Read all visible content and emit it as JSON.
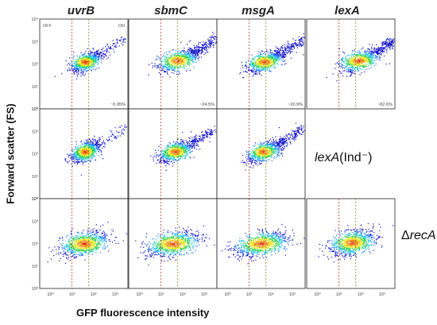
{
  "chart_data": {
    "type": "scatter",
    "title": "",
    "xlabel": "GFP fluorescence intensity",
    "ylabel": "Forward scatter (FS)",
    "x_scale": "log",
    "y_scale": "log",
    "x_ticks": [
      "10⁰",
      "10¹",
      "10²",
      "10³"
    ],
    "y_ticks": [
      "10⁰",
      "10¹",
      "10²",
      "10³",
      "10⁴"
    ],
    "columns": [
      "uvrB",
      "sbmC",
      "msgA",
      "lexA"
    ],
    "rows": [
      {
        "label": "",
        "panels": [
          {
            "gene": "uvrB",
            "percent_on": "~5.95%"
          },
          {
            "gene": "sbmC",
            "percent_on": "~24.5%"
          },
          {
            "gene": "msgA",
            "percent_on": "~20.9%"
          },
          {
            "gene": "lexA",
            "percent_on": "~82.6%"
          }
        ]
      },
      {
        "label_italic": "lexA",
        "label_rest": "(Ind⁻)",
        "panels": [
          {
            "gene": "uvrB"
          },
          {
            "gene": "sbmC"
          },
          {
            "gene": "msgA"
          }
        ]
      },
      {
        "label_prefix": "Δ",
        "label_italic": "recA",
        "panels": [
          {
            "gene": "uvrB"
          },
          {
            "gene": "sbmC"
          },
          {
            "gene": "msgA"
          },
          {
            "gene": "lexA"
          }
        ]
      }
    ],
    "gate_labels": {
      "off": "OFF",
      "on": "ON"
    },
    "gate_lines_x": [
      10,
      100
    ],
    "density_colormap": [
      "#1010c8",
      "#1e6ef0",
      "#26c8e6",
      "#3cd25a",
      "#e6e628",
      "#f08c1e",
      "#e61e14"
    ]
  }
}
